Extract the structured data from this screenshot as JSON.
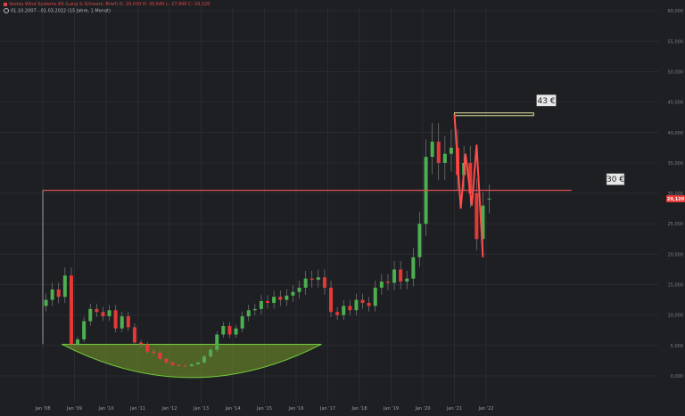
{
  "header": {
    "title": "Vestas Wind Systems AS (Lang & Schwarz, Brief) O: 29,030 H: 30,640 L: 27,900 C: 29,120",
    "range": "01.10.2007 - 01.03.2022  (15 Jahre, 1 Monat)",
    "clock_icon": "clock-icon"
  },
  "colors": {
    "background": "#1e1f23",
    "up": "#4caf50",
    "down": "#e53935",
    "resistance_line": "#e05050",
    "target_line": "#e6e6a0",
    "cup_fill": "#7a9a2a",
    "price_tag": "#e53935"
  },
  "chart_data": {
    "type": "candlestick",
    "title": "Vestas Wind Systems AS (Lang & Schwarz, Brief)",
    "ohlc_last": {
      "open": 29.03,
      "high": 30.64,
      "low": 27.9,
      "close": 29.12
    },
    "last_price_label": "29,120",
    "ylim": [
      0,
      65000
    ],
    "yticks": [
      "0,000",
      "5,000",
      "10,000",
      "15,000",
      "20,000",
      "25,000",
      "30,000",
      "35,000",
      "40,000",
      "45,000",
      "50,000",
      "55,000",
      "60,000",
      "65,000"
    ],
    "xticks": [
      "Jan '08",
      "Jan '09",
      "Jan '10",
      "Jan '11",
      "Jan '12",
      "Jan '13",
      "Jan '14",
      "Jan '15",
      "Jan '16",
      "Jan '17",
      "Jan '18",
      "Jan '19",
      "Jan '20",
      "Jan '21",
      "Jan '22"
    ],
    "grid": true,
    "series": [
      {
        "x": [
          2008.1,
          2008.3,
          2008.5,
          2008.7,
          2008.9,
          2009.1,
          2009.3,
          2009.5,
          2009.7,
          2009.9,
          2010.1,
          2010.3,
          2010.5,
          2010.7,
          2010.9,
          2011.1,
          2011.3,
          2011.5,
          2011.7,
          2011.9,
          2012.1,
          2012.3,
          2012.5,
          2012.7,
          2012.9,
          2013.1,
          2013.3,
          2013.5,
          2013.7,
          2013.9,
          2014.1,
          2014.3,
          2014.5,
          2014.7,
          2014.9,
          2015.1,
          2015.3,
          2015.5,
          2015.7,
          2015.9,
          2016.1,
          2016.3,
          2016.5,
          2016.7,
          2016.9,
          2017.1,
          2017.3,
          2017.5,
          2017.7,
          2017.9,
          2018.1,
          2018.3,
          2018.5,
          2018.7,
          2018.9,
          2019.1,
          2019.3,
          2019.5,
          2019.7,
          2019.9,
          2020.1,
          2020.3,
          2020.5,
          2020.7,
          2020.9,
          2021.1,
          2021.3,
          2021.5,
          2021.7,
          2021.9,
          2022.1
        ],
        "close": [
          12500,
          14200,
          13000,
          16500,
          5200,
          6000,
          9000,
          11000,
          10500,
          9800,
          10800,
          7800,
          9800,
          8000,
          5500,
          5200,
          4000,
          3800,
          2800,
          2200,
          1800,
          1700,
          1600,
          1900,
          2200,
          3200,
          4300,
          6800,
          8200,
          6800,
          7800,
          9800,
          10800,
          11000,
          12300,
          12000,
          13000,
          12500,
          13200,
          13800,
          14500,
          16000,
          15800,
          16200,
          14500,
          10500,
          10000,
          11500,
          10800,
          12500,
          12000,
          11500,
          14500,
          15500,
          15300,
          17500,
          15500,
          16000,
          19500,
          25000,
          36000,
          38500,
          35000,
          36500,
          37500,
          33000,
          35000,
          30000,
          22500,
          28000,
          29120
        ],
        "open": [
          11500,
          12500,
          14200,
          13000,
          16500,
          5200,
          6000,
          9000,
          11000,
          10500,
          9800,
          10800,
          7800,
          9800,
          8000,
          5500,
          5200,
          4000,
          3800,
          2800,
          2200,
          1800,
          1700,
          1600,
          1900,
          2200,
          3200,
          4300,
          6800,
          8200,
          6800,
          7800,
          9800,
          10800,
          11000,
          12300,
          12000,
          13000,
          12500,
          13200,
          13800,
          14500,
          16000,
          15800,
          16200,
          14500,
          10500,
          10000,
          11500,
          10800,
          12500,
          12000,
          11500,
          14500,
          15500,
          15300,
          17500,
          15500,
          16000,
          19500,
          25000,
          36000,
          38500,
          35000,
          36500,
          37500,
          33000,
          35000,
          30000,
          22500,
          29030
        ]
      }
    ],
    "annotations": [
      {
        "label": "43 €",
        "price": 43000,
        "x_start": 2021.0,
        "x_end": 2023.5
      },
      {
        "label": "30 €",
        "price": 30500,
        "x_start": 2008.0,
        "x_end": 2024.7
      }
    ],
    "pattern": {
      "type": "cup",
      "x_start": 2008.6,
      "x_end": 2016.8,
      "top": 5200,
      "bottom": -200
    },
    "zigzag": {
      "x": [
        2021.0,
        2021.2,
        2021.35,
        2021.55,
        2021.7,
        2021.9
      ],
      "y": [
        43000,
        27500,
        36500,
        28000,
        38000,
        19500
      ]
    }
  }
}
